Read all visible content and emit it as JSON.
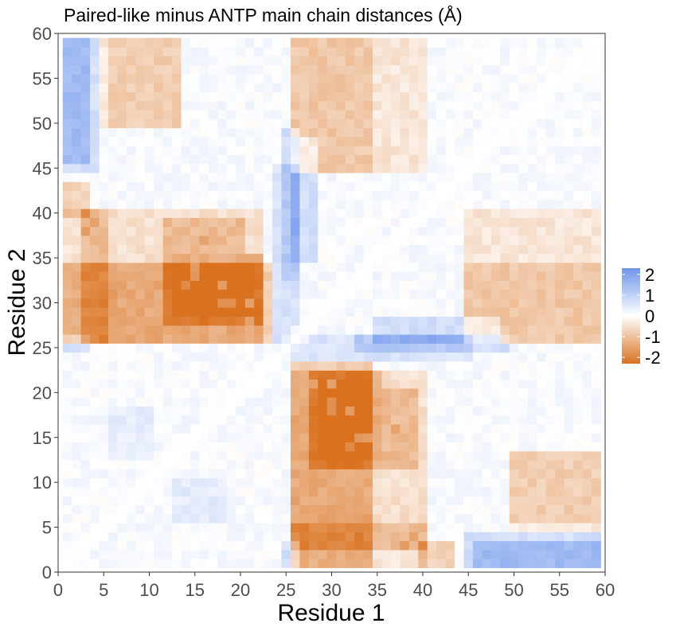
{
  "chart_data": {
    "type": "heatmap",
    "title": "Paired-like minus ANTP main chain distances (Å)",
    "xlabel": "Residue 1",
    "ylabel": "Residue 2",
    "xlim": [
      0,
      60
    ],
    "ylim": [
      0,
      60
    ],
    "x_ticks": [
      0,
      5,
      10,
      15,
      20,
      25,
      30,
      35,
      40,
      45,
      50,
      55,
      60
    ],
    "y_ticks": [
      0,
      5,
      10,
      15,
      20,
      25,
      30,
      35,
      40,
      45,
      50,
      55,
      60
    ],
    "n_residues": 59,
    "symmetric": true,
    "diagonal_value": 0,
    "legend": {
      "position": "right",
      "ticks": [
        2,
        1,
        0,
        -1,
        -2
      ],
      "colors": {
        "high": "#6f96ec",
        "mid": "#ffffff",
        "low": "#d9711f"
      },
      "range": [
        -2.3,
        2.3
      ]
    },
    "base_value": 0.1,
    "regions": [
      {
        "i": [
          26,
          34
        ],
        "j": [
          1,
          23
        ],
        "value": -0.9
      },
      {
        "i": [
          29,
          34
        ],
        "j": [
          13,
          21
        ],
        "value": -0.7
      },
      {
        "i": [
          26,
          40
        ],
        "j": [
          1,
          5
        ],
        "value": -0.5
      },
      {
        "i": [
          36,
          39
        ],
        "j": [
          12,
          20
        ],
        "value": -0.6
      },
      {
        "i": [
          7,
          22
        ],
        "j": [
          26,
          40
        ],
        "value": -0.6
      },
      {
        "i": [
          3,
          6
        ],
        "j": [
          26,
          40
        ],
        "value": -0.7
      },
      {
        "i": [
          12,
          22
        ],
        "j": [
          28,
          35
        ],
        "value": -0.8
      },
      {
        "i": [
          17,
          21
        ],
        "j": [
          29,
          31
        ],
        "value": -0.5
      },
      {
        "i": [
          45,
          59
        ],
        "j": [
          26,
          40
        ],
        "value": -0.5
      },
      {
        "i": [
          50,
          59
        ],
        "j": [
          6,
          13
        ],
        "value": -0.5
      },
      {
        "i": [
          26,
          34
        ],
        "j": [
          45,
          60
        ],
        "value": -0.5
      },
      {
        "i": [
          5,
          13
        ],
        "j": [
          50,
          60
        ],
        "value": -0.4
      },
      {
        "i": [
          1,
          4
        ],
        "j": [
          45,
          60
        ],
        "value": 0.6
      },
      {
        "i": [
          26,
          28
        ],
        "j": [
          35,
          48
        ],
        "value": 0.6
      },
      {
        "i": [
          44,
          59
        ],
        "j": [
          1,
          3
        ],
        "value": 0.8
      },
      {
        "i": [
          33,
          49
        ],
        "j": [
          25,
          26
        ],
        "value": 0.6
      },
      {
        "i": [
          24,
          26
        ],
        "j": [
          25,
          45
        ],
        "value": 0.5
      },
      {
        "i": [
          1,
          3
        ],
        "j": [
          25,
          26
        ],
        "value": 0.6
      },
      {
        "i": [
          6,
          10
        ],
        "j": [
          13,
          18
        ],
        "value": 0.3
      },
      {
        "i": [
          40,
          45
        ],
        "j": [
          1,
          3
        ],
        "value": -0.8
      }
    ],
    "hot_cells": [
      {
        "i": 14,
        "j": 32,
        "value": -1.9
      },
      {
        "i": 18,
        "j": 32,
        "value": -1.9
      },
      {
        "i": 18,
        "j": 30,
        "value": -1.8
      },
      {
        "i": 15,
        "j": 34,
        "value": -1.6
      },
      {
        "i": 21,
        "j": 30,
        "value": -1.5
      },
      {
        "i": 30,
        "j": 19,
        "value": -1.8
      },
      {
        "i": 32,
        "j": 18,
        "value": -1.6
      },
      {
        "i": 33,
        "j": 15,
        "value": -1.7
      },
      {
        "i": 37,
        "j": 16,
        "value": -1.5
      },
      {
        "i": 38,
        "j": 3,
        "value": -1.6
      },
      {
        "i": 39,
        "j": 4,
        "value": -1.5
      },
      {
        "i": 28,
        "j": 21,
        "value": -1.5
      },
      {
        "i": 4,
        "j": 39,
        "value": -1.5
      }
    ]
  }
}
